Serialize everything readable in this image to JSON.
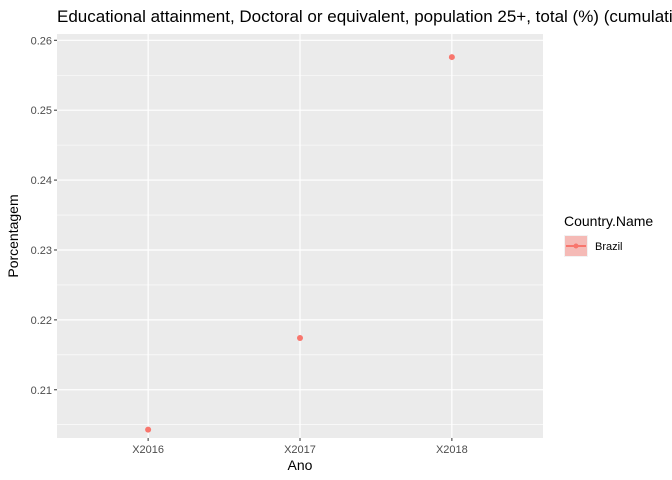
{
  "chart_data": {
    "type": "scatter",
    "title": "Educational attainment, Doctoral or equivalent, population 25+, total (%) (cumulative)",
    "xlabel": "Ano",
    "ylabel": "Porcentagem",
    "categories": [
      "X2016",
      "X2017",
      "X2018"
    ],
    "yticks": [
      "0.21",
      "0.22",
      "0.23",
      "0.24",
      "0.25",
      "0.26"
    ],
    "ylim": [
      0.2031,
      0.2609
    ],
    "grid": true,
    "legend": {
      "title": "Country.Name",
      "position": "right"
    },
    "series": [
      {
        "name": "Brazil",
        "color": "#F8766D",
        "values": [
          0.2043,
          0.2174,
          0.2576
        ]
      }
    ]
  }
}
